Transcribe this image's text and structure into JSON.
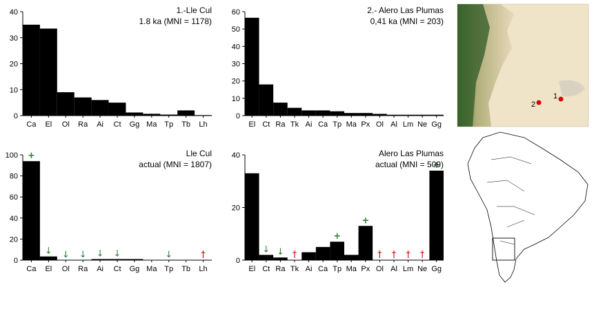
{
  "colors": {
    "bar": "#000000",
    "increase": "#2e7d32",
    "decrease": "#2e7d32",
    "extinct": "#e00000"
  },
  "marker_legend": {
    "increase": "+",
    "decrease": "↓",
    "extinct": "†"
  },
  "chart_data": [
    {
      "type": "bar",
      "title": "1.-Lle Cul",
      "subtitle": "1.8 ka (MNI = 1178)",
      "categories": [
        "Ca",
        "El",
        "Ol",
        "Ra",
        "Ai",
        "Ct",
        "Gg",
        "Ma",
        "Tp",
        "Tb",
        "Lh"
      ],
      "values": [
        35,
        33.5,
        9,
        7,
        6,
        5,
        1.2,
        0.7,
        0.4,
        2,
        0.2
      ],
      "yticks": [
        "0",
        "10",
        "20",
        "30",
        "40"
      ],
      "ylim": [
        0,
        40
      ],
      "markers": [
        "",
        "",
        "",
        "",
        "",
        "",
        "",
        "",
        "",
        "",
        ""
      ]
    },
    {
      "type": "bar",
      "title": "2.- Alero Las Plumas",
      "subtitle": "0,41 ka (MNI = 203)",
      "categories": [
        "El",
        "Ct",
        "Ra",
        "Tk",
        "Ai",
        "Ca",
        "Tp",
        "Ma",
        "Px",
        "Ol",
        "Al",
        "Lm",
        "Ne",
        "Gg"
      ],
      "values": [
        56.5,
        18,
        7.5,
        4.5,
        3,
        3,
        2.5,
        1.5,
        1.5,
        1,
        0.5,
        0.5,
        0.5,
        0.5
      ],
      "yticks": [
        "0",
        "10",
        "20",
        "30",
        "40",
        "50",
        "60"
      ],
      "ylim": [
        0,
        60
      ],
      "markers": [
        "",
        "",
        "",
        "",
        "",
        "",
        "",
        "",
        "",
        "",
        "",
        "",
        "",
        ""
      ]
    },
    {
      "type": "bar",
      "title": "Lle Cul",
      "subtitle": "actual (MNI = 1807)",
      "categories": [
        "Ca",
        "El",
        "Ol",
        "Ra",
        "Ai",
        "Ct",
        "Gg",
        "Ma",
        "Tp",
        "Tb",
        "Lh"
      ],
      "values": [
        94,
        3.5,
        0,
        0,
        1,
        1,
        1,
        0,
        0,
        0,
        0
      ],
      "yticks": [
        "0",
        "20",
        "40",
        "60",
        "80",
        "100"
      ],
      "ylim": [
        0,
        100
      ],
      "markers": [
        "increase",
        "decrease",
        "decrease",
        "decrease",
        "decrease",
        "decrease",
        "",
        "",
        "decrease",
        "",
        "extinct"
      ]
    },
    {
      "type": "bar",
      "title": "Alero Las Plumas",
      "subtitle": "actual (MNI = 509)",
      "categories": [
        "El",
        "Ct",
        "Ra",
        "Tk",
        "Ai",
        "Ca",
        "Tp",
        "Ma",
        "Px",
        "Ol",
        "Al",
        "Lm",
        "Ne",
        "Gg"
      ],
      "values": [
        33,
        2,
        1,
        0,
        3,
        5,
        7,
        2,
        13,
        0,
        0,
        0,
        0,
        34
      ],
      "yticks": [
        "0",
        "20",
        "40"
      ],
      "ylim": [
        0,
        40
      ],
      "markers": [
        "",
        "decrease",
        "decrease",
        "extinct",
        "",
        "",
        "increase",
        "",
        "increase",
        "extinct",
        "extinct",
        "extinct",
        "extinct",
        "increase"
      ]
    }
  ],
  "map_sites": [
    {
      "label": "1"
    },
    {
      "label": "2"
    }
  ]
}
